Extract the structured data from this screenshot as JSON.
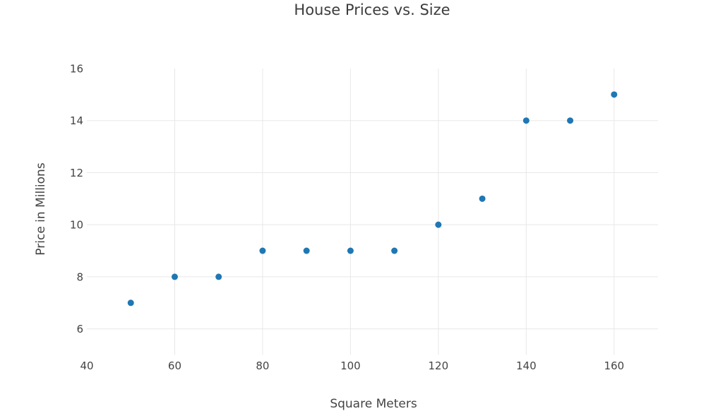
{
  "chart_data": {
    "type": "scatter",
    "title": "House Prices vs. Size",
    "xlabel": "Square Meters",
    "ylabel": "Price in Millions",
    "x": [
      50,
      60,
      70,
      80,
      90,
      100,
      110,
      120,
      130,
      140,
      150,
      160
    ],
    "y": [
      7,
      8,
      8,
      9,
      9,
      9,
      9,
      10,
      11,
      14,
      14,
      15
    ],
    "xlim": [
      40,
      170
    ],
    "ylim": [
      5,
      16
    ],
    "x_ticks": [
      40,
      60,
      80,
      100,
      120,
      140,
      160
    ],
    "y_ticks": [
      6,
      8,
      10,
      12,
      14,
      16
    ],
    "x_gridlines": [
      60,
      80,
      100,
      120,
      140,
      160
    ],
    "y_gridlines": [
      6,
      8,
      10,
      12,
      14
    ],
    "grid": true,
    "legend": false,
    "marker_color": "#1f77b4",
    "grid_color": "#e8e8e8",
    "tick_color": "#444444",
    "title_color": "#3d3d3d",
    "background_color": "#ffffff"
  }
}
